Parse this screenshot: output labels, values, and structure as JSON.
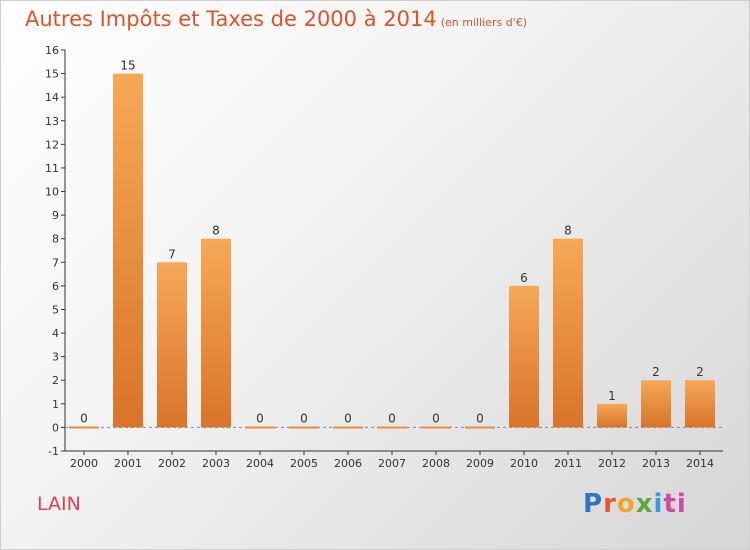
{
  "title": "Autres Impôts et Taxes de 2000 à 2014",
  "title_unit": "(en milliers d'€)",
  "place": "LAIN",
  "logo": [
    "P",
    "r",
    "o",
    "x",
    "i",
    "ti"
  ],
  "colors": {
    "bar_light": "#f6a857",
    "bar_dark": "#d9742a",
    "title": "#e0522a"
  },
  "chart_data": {
    "type": "bar",
    "categories": [
      "2000",
      "2001",
      "2002",
      "2003",
      "2004",
      "2005",
      "2006",
      "2007",
      "2008",
      "2009",
      "2010",
      "2011",
      "2012",
      "2013",
      "2014"
    ],
    "values": [
      0,
      15,
      7,
      8,
      0,
      0,
      0,
      0,
      0,
      0,
      6,
      8,
      1,
      2,
      2
    ],
    "data_labels": [
      "0",
      "15",
      "7",
      "8",
      "0",
      "0",
      "0",
      "0",
      "0",
      "0",
      "6",
      "8",
      "1",
      "2",
      "2"
    ],
    "y_ticks": [
      "-1",
      "0",
      "1",
      "2",
      "3",
      "4",
      "5",
      "6",
      "7",
      "8",
      "9",
      "10",
      "11",
      "12",
      "13",
      "14",
      "15",
      "16"
    ],
    "ylim": [
      -1,
      16
    ],
    "grid": false
  }
}
